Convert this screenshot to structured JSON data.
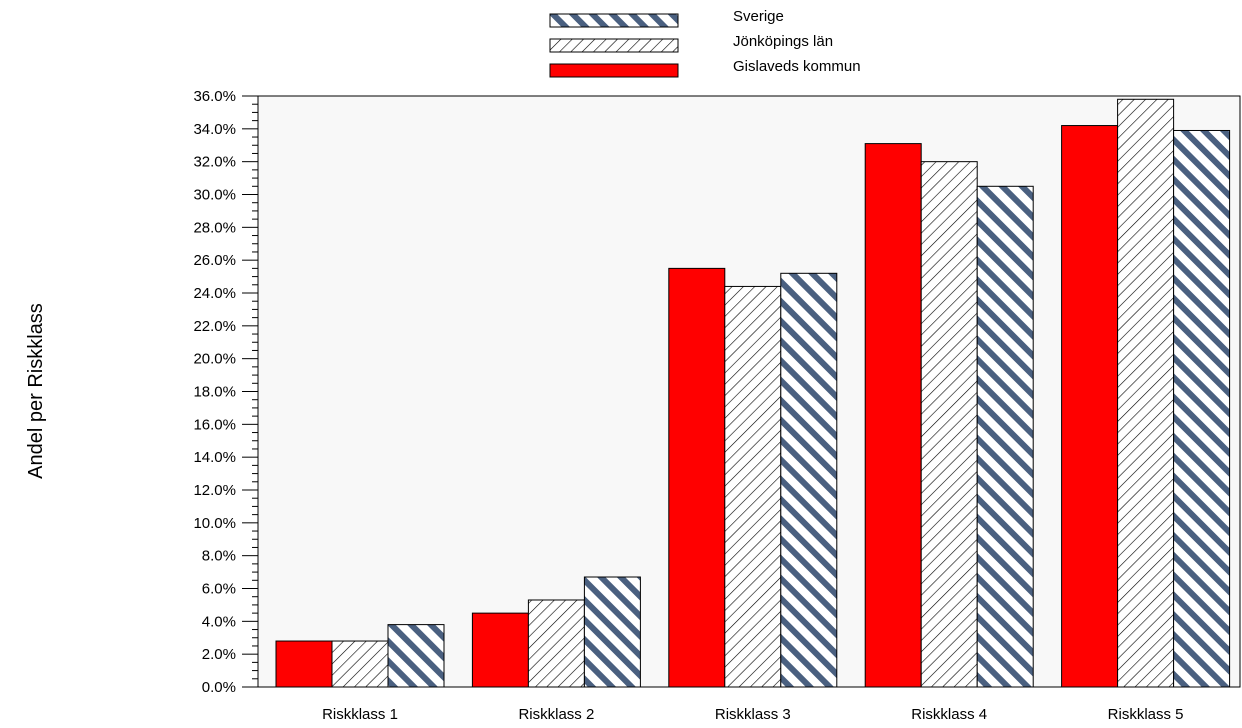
{
  "chart_data": {
    "type": "bar",
    "title": "",
    "xlabel": "",
    "ylabel": "Andel per Riskklass",
    "ylim": [
      0,
      36
    ],
    "ytick_step": 2,
    "ytick_labels": [
      "0.0%",
      "2.0%",
      "4.0%",
      "6.0%",
      "8.0%",
      "10.0%",
      "12.0%",
      "14.0%",
      "16.0%",
      "18.0%",
      "20.0%",
      "22.0%",
      "24.0%",
      "26.0%",
      "28.0%",
      "30.0%",
      "32.0%",
      "34.0%",
      "36.0%"
    ],
    "categories": [
      "Riskklass 1",
      "Riskklass 2",
      "Riskklass 3",
      "Riskklass 4",
      "Riskklass 5"
    ],
    "series": [
      {
        "name": "Gislaveds kommun",
        "values": [
          2.8,
          4.5,
          25.5,
          33.1,
          34.2
        ],
        "fill": "#ff0000",
        "pattern": "solid"
      },
      {
        "name": "Jönköpings län",
        "values": [
          2.8,
          5.3,
          24.4,
          32.0,
          35.8
        ],
        "fill": "#ffffff",
        "pattern": "thin-diagonal",
        "stroke": "#000000"
      },
      {
        "name": "Sverige",
        "values": [
          3.8,
          6.7,
          25.2,
          30.5,
          33.9
        ],
        "fill": "#ffffff",
        "pattern": "wide-diagonal",
        "stripe": "#4a6080"
      }
    ],
    "legend": {
      "placement": "top-center",
      "order": [
        "Sverige",
        "Jönköpings län",
        "Gislaveds kommun"
      ]
    },
    "grid": false,
    "plot_background": "#f8f8f8"
  }
}
